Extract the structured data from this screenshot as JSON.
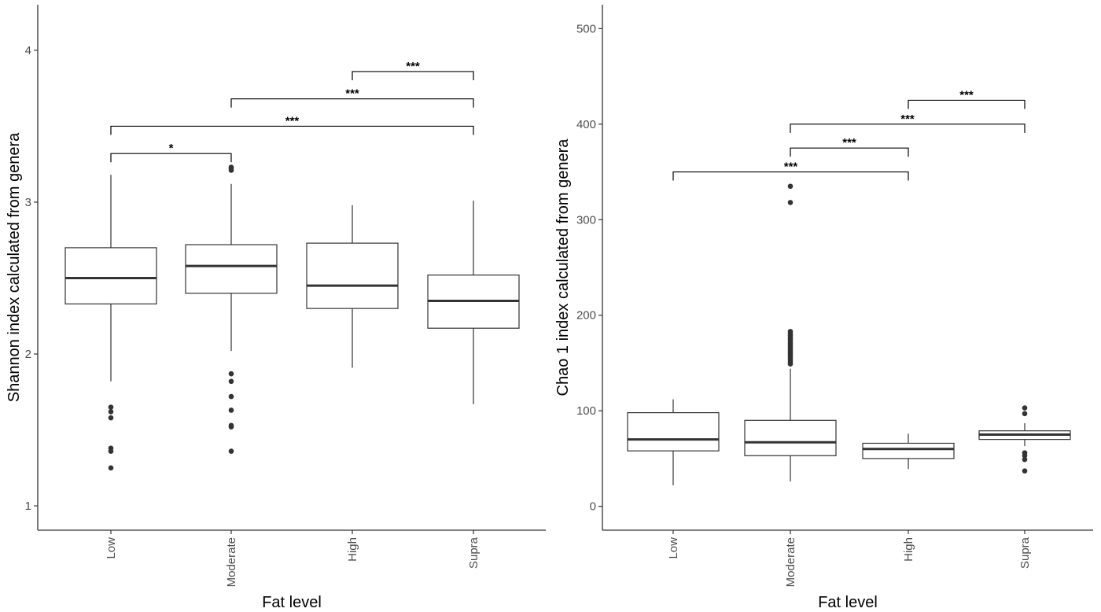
{
  "chart_data": [
    {
      "type": "box",
      "xlabel": "Fat level",
      "ylabel": "Shannon index calculated from genera",
      "ylim": [
        0.84,
        4.3
      ],
      "yticks": [
        1,
        2,
        3,
        4
      ],
      "grid": false,
      "categories": [
        "Low",
        "Moderate",
        "High",
        "Supra"
      ],
      "boxes": [
        {
          "whisker_low": 1.82,
          "q1": 2.33,
          "median": 2.5,
          "q3": 2.7,
          "whisker_high": 3.18,
          "outliers": [
            1.65,
            1.62,
            1.58,
            1.38,
            1.36,
            1.25
          ]
        },
        {
          "whisker_low": 2.02,
          "q1": 2.4,
          "median": 2.58,
          "q3": 2.72,
          "whisker_high": 3.12,
          "outliers": [
            3.23,
            3.22,
            3.21,
            1.87,
            1.82,
            1.72,
            1.63,
            1.53,
            1.52,
            1.36
          ]
        },
        {
          "whisker_low": 1.91,
          "q1": 2.3,
          "median": 2.45,
          "q3": 2.73,
          "whisker_high": 2.98,
          "outliers": []
        },
        {
          "whisker_low": 1.67,
          "q1": 2.17,
          "median": 2.35,
          "q3": 2.52,
          "whisker_high": 3.01,
          "outliers": []
        }
      ],
      "significance": [
        {
          "from": 0,
          "to": 1,
          "y": 3.32,
          "label": "*"
        },
        {
          "from": 0,
          "to": 3,
          "y": 3.5,
          "label": "***"
        },
        {
          "from": 1,
          "to": 3,
          "y": 3.68,
          "label": "***"
        },
        {
          "from": 2,
          "to": 3,
          "y": 3.86,
          "label": "***"
        }
      ]
    },
    {
      "type": "box",
      "xlabel": "Fat level",
      "ylabel": "Chao 1 index calculated from genera",
      "ylim": [
        -25,
        525
      ],
      "yticks": [
        0,
        100,
        200,
        300,
        400,
        500
      ],
      "grid": false,
      "categories": [
        "Low",
        "Moderate",
        "High",
        "Supra"
      ],
      "boxes": [
        {
          "whisker_low": 22,
          "q1": 58,
          "median": 70,
          "q3": 98,
          "whisker_high": 112,
          "outliers": []
        },
        {
          "whisker_low": 26,
          "q1": 53,
          "median": 67,
          "q3": 90,
          "whisker_high": 144,
          "outliers": [
            335,
            318,
            183,
            181,
            179,
            177,
            175,
            173,
            171,
            169,
            167,
            165,
            163,
            161,
            159,
            157,
            155,
            153,
            151,
            149
          ]
        },
        {
          "whisker_low": 39,
          "q1": 50,
          "median": 60,
          "q3": 66,
          "whisker_high": 76,
          "outliers": []
        },
        {
          "whisker_low": 63,
          "q1": 70,
          "median": 75,
          "q3": 79,
          "whisker_high": 87,
          "outliers": [
            103,
            97,
            56,
            53,
            49,
            37
          ]
        }
      ],
      "significance": [
        {
          "from": 0,
          "to": 2,
          "y": 350,
          "label": "***"
        },
        {
          "from": 1,
          "to": 2,
          "y": 375,
          "label": "***"
        },
        {
          "from": 1,
          "to": 3,
          "y": 400,
          "label": "***"
        },
        {
          "from": 2,
          "to": 3,
          "y": 425,
          "label": "***"
        }
      ]
    }
  ]
}
